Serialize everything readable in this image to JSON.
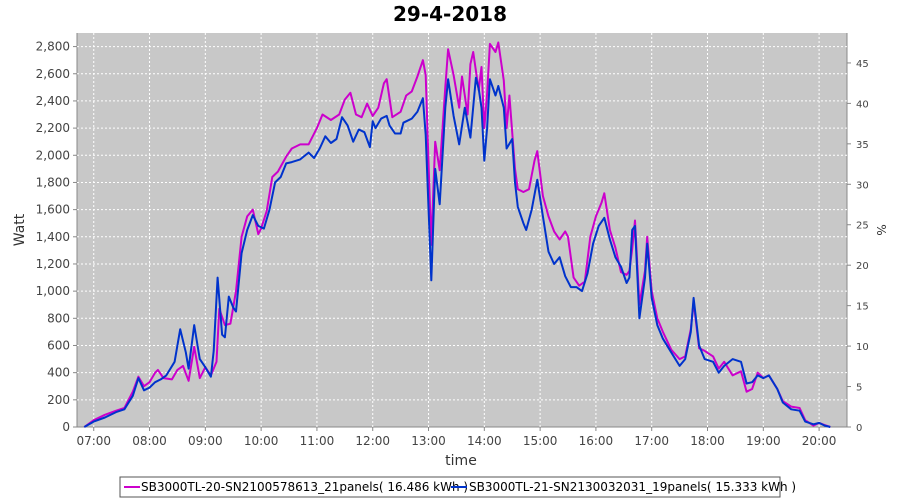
{
  "chart_data": {
    "type": "line",
    "title": "29-4-2018",
    "xlabel": "time",
    "ylabel": "Watt",
    "y2label": "%",
    "xlim": [
      6.7,
      20.5
    ],
    "ylim": [
      0,
      2900
    ],
    "y2lim": [
      0,
      48.7
    ],
    "grid": true,
    "legend_position": "bottom",
    "x_ticks": [
      "07:00",
      "08:00",
      "09:00",
      "10:00",
      "11:00",
      "12:00",
      "13:00",
      "14:00",
      "15:00",
      "16:00",
      "17:00",
      "18:00",
      "19:00",
      "20:00"
    ],
    "x_tick_values": [
      7,
      8,
      9,
      10,
      11,
      12,
      13,
      14,
      15,
      16,
      17,
      18,
      19,
      20
    ],
    "y_ticks": [
      "0",
      "200",
      "400",
      "600",
      "800",
      "1,000",
      "1,200",
      "1,400",
      "1,600",
      "1,800",
      "2,000",
      "2,200",
      "2,400",
      "2,600",
      "2,800"
    ],
    "y_tick_values": [
      0,
      200,
      400,
      600,
      800,
      1000,
      1200,
      1400,
      1600,
      1800,
      2000,
      2200,
      2400,
      2600,
      2800
    ],
    "y2_ticks": [
      "0",
      "5",
      "10",
      "15",
      "20",
      "25",
      "30",
      "35",
      "40",
      "45"
    ],
    "y2_tick_values": [
      0,
      5,
      10,
      15,
      20,
      25,
      30,
      35,
      40,
      45
    ],
    "series": [
      {
        "name": "SB3000TL-20-SN2100578613_21panels",
        "legend_label": "SB3000TL-20-SN2100578613_21panels( 16.486 kWh )",
        "color": "#cc00cc",
        "points": [
          [
            6.83,
            0
          ],
          [
            7.0,
            50
          ],
          [
            7.2,
            90
          ],
          [
            7.4,
            120
          ],
          [
            7.55,
            140
          ],
          [
            7.7,
            260
          ],
          [
            7.8,
            370
          ],
          [
            7.9,
            300
          ],
          [
            8.0,
            330
          ],
          [
            8.1,
            400
          ],
          [
            8.15,
            420
          ],
          [
            8.25,
            360
          ],
          [
            8.4,
            350
          ],
          [
            8.5,
            420
          ],
          [
            8.6,
            450
          ],
          [
            8.7,
            340
          ],
          [
            8.8,
            590
          ],
          [
            8.9,
            360
          ],
          [
            9.0,
            440
          ],
          [
            9.1,
            380
          ],
          [
            9.2,
            480
          ],
          [
            9.25,
            870
          ],
          [
            9.35,
            750
          ],
          [
            9.45,
            760
          ],
          [
            9.55,
            1000
          ],
          [
            9.65,
            1400
          ],
          [
            9.75,
            1550
          ],
          [
            9.85,
            1600
          ],
          [
            9.95,
            1420
          ],
          [
            10.0,
            1460
          ],
          [
            10.1,
            1590
          ],
          [
            10.2,
            1840
          ],
          [
            10.3,
            1880
          ],
          [
            10.45,
            1990
          ],
          [
            10.55,
            2050
          ],
          [
            10.7,
            2080
          ],
          [
            10.85,
            2080
          ],
          [
            11.0,
            2200
          ],
          [
            11.1,
            2300
          ],
          [
            11.25,
            2260
          ],
          [
            11.4,
            2300
          ],
          [
            11.5,
            2410
          ],
          [
            11.6,
            2460
          ],
          [
            11.7,
            2300
          ],
          [
            11.8,
            2280
          ],
          [
            11.9,
            2380
          ],
          [
            12.0,
            2290
          ],
          [
            12.1,
            2350
          ],
          [
            12.2,
            2530
          ],
          [
            12.25,
            2560
          ],
          [
            12.35,
            2280
          ],
          [
            12.5,
            2320
          ],
          [
            12.6,
            2440
          ],
          [
            12.7,
            2470
          ],
          [
            12.8,
            2580
          ],
          [
            12.9,
            2700
          ],
          [
            12.95,
            2590
          ],
          [
            13.0,
            1950
          ],
          [
            13.05,
            1340
          ],
          [
            13.12,
            2100
          ],
          [
            13.2,
            1890
          ],
          [
            13.3,
            2500
          ],
          [
            13.35,
            2780
          ],
          [
            13.45,
            2590
          ],
          [
            13.55,
            2350
          ],
          [
            13.6,
            2580
          ],
          [
            13.7,
            2300
          ],
          [
            13.75,
            2670
          ],
          [
            13.8,
            2760
          ],
          [
            13.9,
            2480
          ],
          [
            13.95,
            2650
          ],
          [
            14.0,
            2200
          ],
          [
            14.05,
            2450
          ],
          [
            14.1,
            2820
          ],
          [
            14.2,
            2760
          ],
          [
            14.25,
            2830
          ],
          [
            14.35,
            2550
          ],
          [
            14.4,
            2200
          ],
          [
            14.45,
            2440
          ],
          [
            14.55,
            1900
          ],
          [
            14.6,
            1750
          ],
          [
            14.7,
            1730
          ],
          [
            14.8,
            1750
          ],
          [
            14.9,
            1960
          ],
          [
            14.95,
            2030
          ],
          [
            15.05,
            1700
          ],
          [
            15.15,
            1550
          ],
          [
            15.25,
            1440
          ],
          [
            15.35,
            1380
          ],
          [
            15.45,
            1440
          ],
          [
            15.5,
            1400
          ],
          [
            15.6,
            1100
          ],
          [
            15.7,
            1040
          ],
          [
            15.8,
            1070
          ],
          [
            15.9,
            1400
          ],
          [
            16.0,
            1550
          ],
          [
            16.1,
            1650
          ],
          [
            16.15,
            1720
          ],
          [
            16.25,
            1450
          ],
          [
            16.35,
            1320
          ],
          [
            16.45,
            1140
          ],
          [
            16.55,
            1120
          ],
          [
            16.6,
            1150
          ],
          [
            16.65,
            1310
          ],
          [
            16.7,
            1520
          ],
          [
            16.78,
            900
          ],
          [
            16.88,
            1150
          ],
          [
            16.92,
            1400
          ],
          [
            17.0,
            1000
          ],
          [
            17.1,
            800
          ],
          [
            17.2,
            700
          ],
          [
            17.35,
            570
          ],
          [
            17.5,
            500
          ],
          [
            17.6,
            520
          ],
          [
            17.7,
            720
          ],
          [
            17.75,
            920
          ],
          [
            17.85,
            580
          ],
          [
            17.95,
            560
          ],
          [
            18.1,
            520
          ],
          [
            18.2,
            430
          ],
          [
            18.3,
            480
          ],
          [
            18.45,
            380
          ],
          [
            18.6,
            410
          ],
          [
            18.7,
            260
          ],
          [
            18.8,
            280
          ],
          [
            18.9,
            400
          ],
          [
            19.0,
            360
          ],
          [
            19.1,
            380
          ],
          [
            19.25,
            280
          ],
          [
            19.35,
            190
          ],
          [
            19.5,
            150
          ],
          [
            19.65,
            140
          ],
          [
            19.75,
            50
          ],
          [
            19.9,
            10
          ],
          [
            20.0,
            30
          ],
          [
            20.1,
            15
          ],
          [
            20.2,
            0
          ]
        ]
      },
      {
        "name": "SB3000TL-21-SN2130032031_19panels",
        "legend_label": "SB3000TL-21-SN2130032031_19panels( 15.333 kWh )",
        "color": "#0033cc",
        "points": [
          [
            6.83,
            0
          ],
          [
            7.0,
            40
          ],
          [
            7.2,
            70
          ],
          [
            7.4,
            110
          ],
          [
            7.55,
            130
          ],
          [
            7.7,
            230
          ],
          [
            7.8,
            360
          ],
          [
            7.9,
            270
          ],
          [
            8.0,
            290
          ],
          [
            8.1,
            330
          ],
          [
            8.2,
            350
          ],
          [
            8.3,
            380
          ],
          [
            8.45,
            480
          ],
          [
            8.55,
            720
          ],
          [
            8.65,
            550
          ],
          [
            8.7,
            430
          ],
          [
            8.8,
            750
          ],
          [
            8.9,
            500
          ],
          [
            9.0,
            440
          ],
          [
            9.1,
            370
          ],
          [
            9.15,
            560
          ],
          [
            9.22,
            1100
          ],
          [
            9.3,
            680
          ],
          [
            9.35,
            660
          ],
          [
            9.42,
            960
          ],
          [
            9.5,
            880
          ],
          [
            9.55,
            850
          ],
          [
            9.65,
            1280
          ],
          [
            9.75,
            1450
          ],
          [
            9.85,
            1560
          ],
          [
            9.95,
            1480
          ],
          [
            10.05,
            1460
          ],
          [
            10.15,
            1600
          ],
          [
            10.25,
            1800
          ],
          [
            10.35,
            1840
          ],
          [
            10.45,
            1940
          ],
          [
            10.55,
            1950
          ],
          [
            10.7,
            1970
          ],
          [
            10.85,
            2020
          ],
          [
            10.95,
            1980
          ],
          [
            11.05,
            2050
          ],
          [
            11.15,
            2140
          ],
          [
            11.25,
            2090
          ],
          [
            11.35,
            2120
          ],
          [
            11.45,
            2280
          ],
          [
            11.55,
            2220
          ],
          [
            11.65,
            2100
          ],
          [
            11.75,
            2190
          ],
          [
            11.85,
            2170
          ],
          [
            11.95,
            2060
          ],
          [
            12.0,
            2250
          ],
          [
            12.05,
            2200
          ],
          [
            12.15,
            2270
          ],
          [
            12.25,
            2290
          ],
          [
            12.3,
            2220
          ],
          [
            12.4,
            2160
          ],
          [
            12.5,
            2160
          ],
          [
            12.55,
            2240
          ],
          [
            12.6,
            2250
          ],
          [
            12.7,
            2270
          ],
          [
            12.8,
            2320
          ],
          [
            12.9,
            2420
          ],
          [
            12.95,
            2150
          ],
          [
            13.05,
            1080
          ],
          [
            13.12,
            1900
          ],
          [
            13.2,
            1640
          ],
          [
            13.3,
            2350
          ],
          [
            13.35,
            2560
          ],
          [
            13.45,
            2290
          ],
          [
            13.55,
            2080
          ],
          [
            13.65,
            2350
          ],
          [
            13.75,
            2130
          ],
          [
            13.85,
            2570
          ],
          [
            13.9,
            2490
          ],
          [
            13.95,
            2350
          ],
          [
            14.0,
            1960
          ],
          [
            14.05,
            2200
          ],
          [
            14.1,
            2560
          ],
          [
            14.2,
            2440
          ],
          [
            14.25,
            2510
          ],
          [
            14.35,
            2350
          ],
          [
            14.4,
            2050
          ],
          [
            14.5,
            2120
          ],
          [
            14.55,
            1800
          ],
          [
            14.6,
            1620
          ],
          [
            14.7,
            1500
          ],
          [
            14.75,
            1450
          ],
          [
            14.85,
            1600
          ],
          [
            14.95,
            1820
          ],
          [
            15.05,
            1550
          ],
          [
            15.15,
            1290
          ],
          [
            15.25,
            1200
          ],
          [
            15.35,
            1250
          ],
          [
            15.45,
            1110
          ],
          [
            15.55,
            1030
          ],
          [
            15.65,
            1030
          ],
          [
            15.75,
            1000
          ],
          [
            15.85,
            1130
          ],
          [
            15.95,
            1350
          ],
          [
            16.05,
            1480
          ],
          [
            16.15,
            1540
          ],
          [
            16.25,
            1380
          ],
          [
            16.35,
            1250
          ],
          [
            16.45,
            1180
          ],
          [
            16.55,
            1060
          ],
          [
            16.6,
            1100
          ],
          [
            16.65,
            1450
          ],
          [
            16.7,
            1480
          ],
          [
            16.78,
            800
          ],
          [
            16.88,
            1100
          ],
          [
            16.92,
            1350
          ],
          [
            17.0,
            950
          ],
          [
            17.1,
            750
          ],
          [
            17.2,
            650
          ],
          [
            17.35,
            550
          ],
          [
            17.5,
            450
          ],
          [
            17.6,
            500
          ],
          [
            17.7,
            700
          ],
          [
            17.75,
            950
          ],
          [
            17.85,
            600
          ],
          [
            17.95,
            500
          ],
          [
            18.1,
            480
          ],
          [
            18.2,
            400
          ],
          [
            18.3,
            450
          ],
          [
            18.45,
            500
          ],
          [
            18.6,
            480
          ],
          [
            18.7,
            320
          ],
          [
            18.8,
            330
          ],
          [
            18.9,
            380
          ],
          [
            19.0,
            360
          ],
          [
            19.1,
            380
          ],
          [
            19.25,
            280
          ],
          [
            19.35,
            180
          ],
          [
            19.5,
            130
          ],
          [
            19.65,
            120
          ],
          [
            19.75,
            40
          ],
          [
            19.9,
            20
          ],
          [
            20.0,
            30
          ],
          [
            20.1,
            10
          ],
          [
            20.2,
            0
          ]
        ]
      }
    ]
  }
}
